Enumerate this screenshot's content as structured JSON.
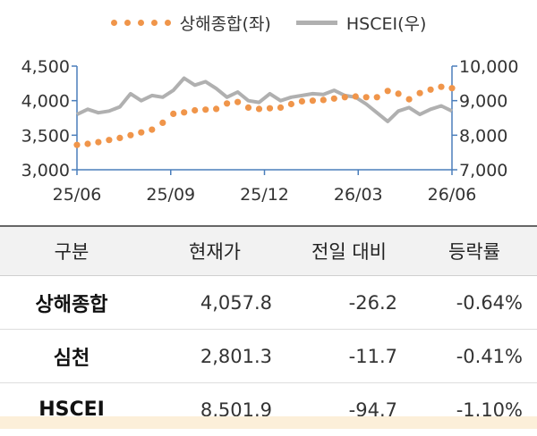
{
  "chart_data": {
    "type": "line",
    "x_tick_labels": [
      "25/06",
      "25/09",
      "25/12",
      "26/03",
      "26/06"
    ],
    "y_left": {
      "ticks": [
        "3,000",
        "3,500",
        "4,000",
        "4,500"
      ],
      "range": [
        3000,
        4500
      ]
    },
    "y_right": {
      "ticks": [
        "7,000",
        "8,000",
        "9,000",
        "10,000"
      ],
      "range": [
        7000,
        10000
      ]
    },
    "series": [
      {
        "name": "상해종합(좌)",
        "axis": "left",
        "style": "dots",
        "color": "#F0954A",
        "x": [
          "25/06",
          "25/06",
          "25/07",
          "25/07",
          "25/07",
          "25/08",
          "25/08",
          "25/08",
          "25/09",
          "25/09",
          "25/09",
          "25/10",
          "25/10",
          "25/10",
          "25/11",
          "25/11",
          "25/11",
          "25/12",
          "25/12",
          "25/12",
          "26/01",
          "26/01",
          "26/01",
          "26/02",
          "26/02",
          "26/02",
          "26/03",
          "26/03",
          "26/03",
          "26/04",
          "26/04",
          "26/04",
          "26/05",
          "26/05",
          "26/05",
          "26/06"
        ],
        "values": [
          3360,
          3375,
          3400,
          3430,
          3460,
          3500,
          3540,
          3580,
          3680,
          3810,
          3830,
          3860,
          3870,
          3880,
          3960,
          3980,
          3900,
          3880,
          3890,
          3900,
          3950,
          3990,
          4000,
          4010,
          4030,
          4050,
          4060,
          4050,
          4050,
          4140,
          4100,
          4020,
          4110,
          4160,
          4200,
          4180
        ]
      },
      {
        "name": "HSCEI(우)",
        "axis": "right",
        "style": "line",
        "color": "#B0B0B0",
        "x": [
          "25/06",
          "25/06",
          "25/07",
          "25/07",
          "25/07",
          "25/08",
          "25/08",
          "25/08",
          "25/09",
          "25/09",
          "25/09",
          "25/10",
          "25/10",
          "25/10",
          "25/11",
          "25/11",
          "25/11",
          "25/12",
          "25/12",
          "25/12",
          "26/01",
          "26/01",
          "26/01",
          "26/02",
          "26/02",
          "26/02",
          "26/03",
          "26/03",
          "26/03",
          "26/04",
          "26/04",
          "26/04",
          "26/05",
          "26/05",
          "26/05",
          "26/06"
        ],
        "values": [
          8600,
          8750,
          8650,
          8700,
          8820,
          9200,
          9000,
          9150,
          9100,
          9300,
          9650,
          9450,
          9550,
          9350,
          9100,
          9250,
          9000,
          8950,
          9200,
          9000,
          9100,
          9150,
          9200,
          9180,
          9300,
          9150,
          9100,
          8900,
          8650,
          8400,
          8700,
          8800,
          8600,
          8750,
          8850,
          8700
        ]
      }
    ]
  },
  "table": {
    "headers": [
      "구분",
      "현재가",
      "전일 대비",
      "등락률"
    ],
    "rows": [
      {
        "name": "상해종합",
        "price": "4,057.8",
        "change": "-26.2",
        "rate": "-0.64%"
      },
      {
        "name": "심천",
        "price": "2,801.3",
        "change": "-11.7",
        "rate": "-0.41%"
      },
      {
        "name": "HSCEI",
        "price": "8,501.9",
        "change": "-94.7",
        "rate": "-1.10%"
      }
    ]
  }
}
